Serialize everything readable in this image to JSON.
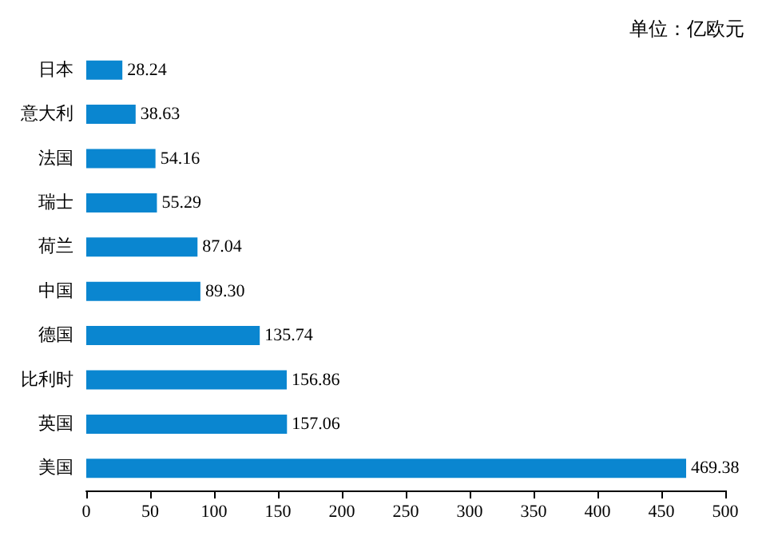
{
  "chart_data": {
    "type": "bar",
    "orientation": "horizontal",
    "annotations": [
      "单位：亿欧元"
    ],
    "categories": [
      "日本",
      "意大利",
      "法国",
      "瑞士",
      "荷兰",
      "中国",
      "德国",
      "比利时",
      "英国",
      "美国"
    ],
    "values": [
      28.24,
      38.63,
      54.16,
      55.29,
      87.04,
      89.3,
      135.74,
      156.86,
      157.06,
      469.38
    ],
    "value_labels": [
      "28.24",
      "38.63",
      "54.16",
      "55.29",
      "87.04",
      "89.30",
      "135.74",
      "156.86",
      "157.06",
      "469.38"
    ],
    "color": "#0a86d0",
    "xlim": [
      0,
      500
    ],
    "xticks": [
      0,
      50,
      100,
      150,
      200,
      250,
      300,
      350,
      400,
      450,
      500
    ],
    "grid": false
  }
}
